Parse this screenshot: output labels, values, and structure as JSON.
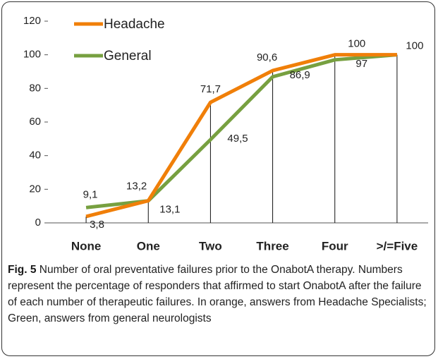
{
  "chart_data": {
    "type": "line",
    "categories": [
      "None",
      "One",
      "Two",
      "Three",
      "Four",
      ">/=Five"
    ],
    "series": [
      {
        "name": "Headache",
        "color": "#f07f09",
        "values": [
          3.8,
          13.2,
          71.7,
          90.6,
          100,
          100
        ],
        "value_labels": [
          "3,8",
          "13,2",
          "71,7",
          "90,6",
          "100",
          "100"
        ]
      },
      {
        "name": "General",
        "color": "#77a040",
        "values": [
          9.1,
          13.1,
          49.5,
          86.9,
          97,
          100
        ],
        "value_labels": [
          "9,1",
          "13,1",
          "49,5",
          "86,9",
          "97",
          null
        ]
      }
    ],
    "ylim": [
      0,
      120
    ],
    "yticks": [
      0,
      20,
      40,
      60,
      80,
      100,
      120
    ],
    "caption": {
      "label": "Fig. 5",
      "text": "Number of oral preventative failures prior to the OnabotA therapy. Numbers represent the percentage of responders that affirmed to start OnabotA after the failure of each number of therapeutic failures. In orange, answers from Headache Specialists; Green, answers from general neurologists"
    }
  }
}
